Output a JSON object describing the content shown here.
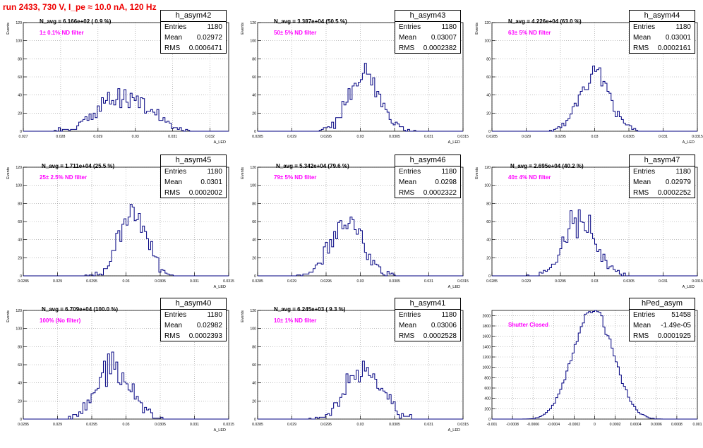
{
  "canvas_title": "run 2433,   730 V, I_pe ≈ 10.0 nA, 120 Hz",
  "chart_data": [
    {
      "type": "histogram",
      "name": "h_asym42",
      "entries": "1180",
      "mean": "0.02972",
      "rms": "0.0006471",
      "n_avg": "N_avg = 6.166e+02 ( 0.9 %)",
      "filter": "1± 0.1% ND filter",
      "xlim": [
        0.027,
        0.0325
      ],
      "ylim": [
        0,
        120
      ],
      "xticks": [
        "0.027",
        "0.028",
        "0.029",
        "0.03",
        "0.031",
        "0.032"
      ],
      "xtick_vals": [
        0.027,
        0.028,
        0.029,
        0.03,
        0.031,
        0.032
      ],
      "yticks": [
        "0",
        "20",
        "40",
        "60",
        "80",
        "100",
        "120"
      ],
      "ytick_vals": [
        0,
        20,
        40,
        60,
        80,
        100,
        120
      ],
      "ylabel": "Events",
      "xlabel": "A_LED",
      "dist": {
        "mu": 0.02972,
        "sigma": 0.00063,
        "n": 1180,
        "bins": 100,
        "seed": 42
      }
    },
    {
      "type": "histogram",
      "name": "h_asym43",
      "entries": "1180",
      "mean": "0.03007",
      "rms": "0.0002382",
      "n_avg": "N_avg = 3.387e+04 (50.5 %)",
      "filter": "50± 5% ND filter",
      "xlim": [
        0.0285,
        0.0315
      ],
      "ylim": [
        0,
        120
      ],
      "xticks": [
        "0.0285",
        "0.029",
        "0.0295",
        "0.03",
        "0.0305",
        "0.031",
        "0.0315"
      ],
      "xtick_vals": [
        0.0285,
        0.029,
        0.0295,
        0.03,
        0.0305,
        0.031,
        0.0315
      ],
      "yticks": [
        "0",
        "20",
        "40",
        "60",
        "80",
        "100",
        "120"
      ],
      "ytick_vals": [
        0,
        20,
        40,
        60,
        80,
        100,
        120
      ],
      "ylabel": "Events",
      "xlabel": "A_LED",
      "dist": {
        "mu": 0.03007,
        "sigma": 0.000235,
        "n": 1180,
        "bins": 100,
        "seed": 43
      }
    },
    {
      "type": "histogram",
      "name": "h_asym44",
      "entries": "1180",
      "mean": "0.03001",
      "rms": "0.0002161",
      "n_avg": "N_avg = 4.226e+04 (63.0 %)",
      "filter": "63± 5% ND filter",
      "xlim": [
        0.0285,
        0.0315
      ],
      "ylim": [
        0,
        120
      ],
      "xticks": [
        "0.0285",
        "0.029",
        "0.0295",
        "0.03",
        "0.0305",
        "0.031",
        "0.0315"
      ],
      "xtick_vals": [
        0.0285,
        0.029,
        0.0295,
        0.03,
        0.0305,
        0.031,
        0.0315
      ],
      "yticks": [
        "0",
        "20",
        "40",
        "60",
        "80",
        "100",
        "120"
      ],
      "ytick_vals": [
        0,
        20,
        40,
        60,
        80,
        100,
        120
      ],
      "ylabel": "Events",
      "xlabel": "A_LED",
      "dist": {
        "mu": 0.03001,
        "sigma": 0.00021,
        "n": 1180,
        "bins": 100,
        "seed": 44
      }
    },
    {
      "type": "histogram",
      "name": "h_asym45",
      "entries": "1180",
      "mean": "0.0301",
      "rms": "0.0002002",
      "n_avg": "N_avg = 1.711e+04 (25.5 %)",
      "filter": "25± 2.5% ND filter",
      "xlim": [
        0.0285,
        0.0315
      ],
      "ylim": [
        0,
        120
      ],
      "xticks": [
        "0.0285",
        "0.029",
        "0.0295",
        "0.03",
        "0.0305",
        "0.031",
        "0.0315"
      ],
      "xtick_vals": [
        0.0285,
        0.029,
        0.0295,
        0.03,
        0.0305,
        0.031,
        0.0315
      ],
      "yticks": [
        "0",
        "20",
        "40",
        "60",
        "80",
        "100",
        "120"
      ],
      "ytick_vals": [
        0,
        20,
        40,
        60,
        80,
        100,
        120
      ],
      "ylabel": "Events",
      "xlabel": "A_LED",
      "dist": {
        "mu": 0.0301,
        "sigma": 0.0002,
        "n": 1180,
        "bins": 100,
        "seed": 45
      }
    },
    {
      "type": "histogram",
      "name": "h_asym46",
      "entries": "1180",
      "mean": "0.0298",
      "rms": "0.0002322",
      "n_avg": "N_avg = 5.342e+04 (79.6 %)",
      "filter": "79± 5% ND filter",
      "xlim": [
        0.0285,
        0.0315
      ],
      "ylim": [
        0,
        120
      ],
      "xticks": [
        "0.0285",
        "0.029",
        "0.0295",
        "0.03",
        "0.0305",
        "0.031",
        "0.0315"
      ],
      "xtick_vals": [
        0.0285,
        0.029,
        0.0295,
        0.03,
        0.0305,
        0.031,
        0.0315
      ],
      "yticks": [
        "0",
        "20",
        "40",
        "60",
        "80",
        "100",
        "120"
      ],
      "ytick_vals": [
        0,
        20,
        40,
        60,
        80,
        100,
        120
      ],
      "ylabel": "Events",
      "xlabel": "A_LED",
      "dist": {
        "mu": 0.0298,
        "sigma": 0.00023,
        "n": 1180,
        "bins": 100,
        "seed": 46
      }
    },
    {
      "type": "histogram",
      "name": "h_asym47",
      "entries": "1180",
      "mean": "0.02979",
      "rms": "0.0002252",
      "n_avg": "N_avg = 2.695e+04 (40.2 %)",
      "filter": "40± 4% ND filter",
      "xlim": [
        0.0285,
        0.0315
      ],
      "ylim": [
        0,
        120
      ],
      "xticks": [
        "0.0285",
        "0.029",
        "0.0295",
        "0.03",
        "0.0305",
        "0.031",
        "0.0315"
      ],
      "xtick_vals": [
        0.0285,
        0.029,
        0.0295,
        0.03,
        0.0305,
        0.031,
        0.0315
      ],
      "yticks": [
        "0",
        "20",
        "40",
        "60",
        "80",
        "100",
        "120"
      ],
      "ytick_vals": [
        0,
        20,
        40,
        60,
        80,
        100,
        120
      ],
      "ylabel": "Events",
      "xlabel": "A_LED",
      "dist": {
        "mu": 0.02979,
        "sigma": 0.000222,
        "n": 1180,
        "bins": 100,
        "seed": 47
      }
    },
    {
      "type": "histogram",
      "name": "h_asym40",
      "entries": "1180",
      "mean": "0.02982",
      "rms": "0.0002393",
      "n_avg": "N_avg = 6.709e+04 (100.0 %)",
      "filter": "100% (No filter)",
      "xlim": [
        0.0285,
        0.0315
      ],
      "ylim": [
        0,
        120
      ],
      "xticks": [
        "0.0285",
        "0.029",
        "0.0295",
        "0.03",
        "0.0305",
        "0.031",
        "0.0315"
      ],
      "xtick_vals": [
        0.0285,
        0.029,
        0.0295,
        0.03,
        0.0305,
        0.031,
        0.0315
      ],
      "yticks": [
        "0",
        "20",
        "40",
        "60",
        "80",
        "100",
        "120"
      ],
      "ytick_vals": [
        0,
        20,
        40,
        60,
        80,
        100,
        120
      ],
      "ylabel": "Events",
      "xlabel": "A_LED",
      "dist": {
        "mu": 0.02982,
        "sigma": 0.000237,
        "n": 1180,
        "bins": 100,
        "seed": 40
      }
    },
    {
      "type": "histogram",
      "name": "h_asym41",
      "entries": "1180",
      "mean": "0.03006",
      "rms": "0.0002528",
      "n_avg": "N_avg = 6.245e+03 ( 9.3 %)",
      "filter": "10± 1% ND filter",
      "xlim": [
        0.0285,
        0.0315
      ],
      "ylim": [
        0,
        120
      ],
      "xticks": [
        "0.0285",
        "0.029",
        "0.0295",
        "0.03",
        "0.0305",
        "0.031",
        "0.0315"
      ],
      "xtick_vals": [
        0.0285,
        0.029,
        0.0295,
        0.03,
        0.0305,
        0.031,
        0.0315
      ],
      "yticks": [
        "0",
        "20",
        "40",
        "60",
        "80",
        "100",
        "120"
      ],
      "ytick_vals": [
        0,
        20,
        40,
        60,
        80,
        100,
        120
      ],
      "ylabel": "Events",
      "xlabel": "A_LED",
      "dist": {
        "mu": 0.03006,
        "sigma": 0.00025,
        "n": 1180,
        "bins": 100,
        "seed": 41
      }
    },
    {
      "type": "histogram",
      "name": "hPed_asym",
      "entries": "51458",
      "mean": "-1.49e-05",
      "rms": "0.0001925",
      "n_avg": "",
      "filter": "Shutter Closed",
      "xlim": [
        -0.001,
        0.001
      ],
      "ylim": [
        0,
        2100
      ],
      "xticks": [
        "-0.001",
        "-0.0008",
        "-0.0006",
        "-0.0004",
        "-0.0002",
        "0",
        "0.0002",
        "0.0004",
        "0.0006",
        "0.0008",
        "0.001"
      ],
      "xtick_vals": [
        -0.001,
        -0.0008,
        -0.0006,
        -0.0004,
        -0.0002,
        0,
        0.0002,
        0.0004,
        0.0006,
        0.0008,
        0.001
      ],
      "yticks": [
        "0",
        "200",
        "400",
        "600",
        "800",
        "1000",
        "1200",
        "1400",
        "1600",
        "1800",
        "2000"
      ],
      "ytick_vals": [
        0,
        200,
        400,
        600,
        800,
        1000,
        1200,
        1400,
        1600,
        1800,
        2000
      ],
      "ylabel": "",
      "xlabel": "",
      "dist": {
        "mu": -1.49e-05,
        "sigma": 0.00019,
        "n": 51458,
        "bins": 100,
        "seed": 9
      }
    }
  ],
  "colors": {
    "title": "#ee0000",
    "line": "#000080",
    "filter_text": "#ff00ff",
    "grid": "#999999"
  }
}
